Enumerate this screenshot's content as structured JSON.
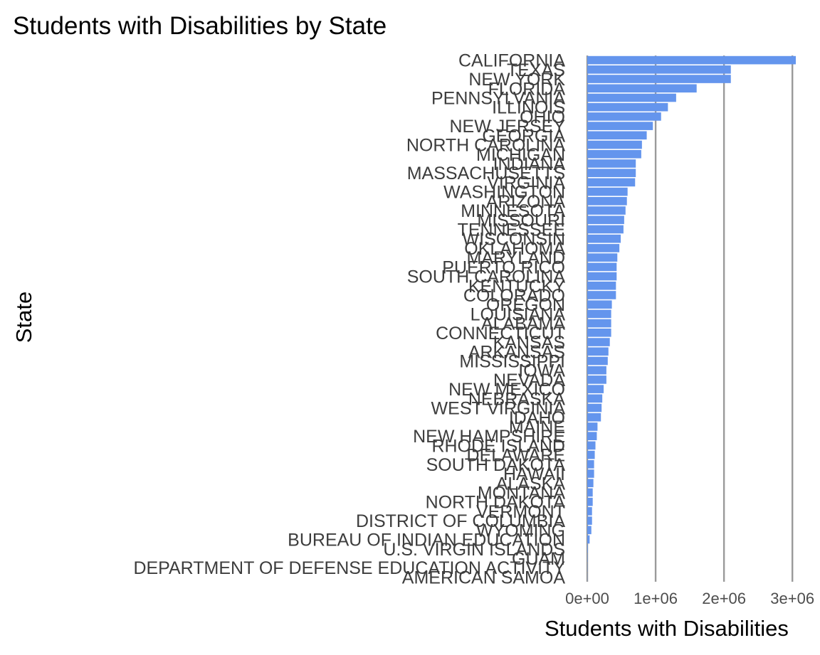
{
  "chart_data": {
    "type": "bar",
    "orientation": "horizontal",
    "title": "Students with Disabilities by State",
    "xlabel": "Students with Disabilities",
    "ylabel": "State",
    "xlim": [
      0,
      3050000
    ],
    "x_ticks": [
      {
        "value": 0,
        "label": "0e+00"
      },
      {
        "value": 1000000,
        "label": "1e+06"
      },
      {
        "value": 2000000,
        "label": "2e+06"
      },
      {
        "value": 3000000,
        "label": "3e+06"
      }
    ],
    "grid": "vertical-major",
    "bar_color": "#6495ED",
    "categories": [
      "CALIFORNIA",
      "TEXAS",
      "NEW YORK",
      "FLORIDA",
      "PENNSYLVANIA",
      "ILLINOIS",
      "OHIO",
      "NEW JERSEY",
      "GEORGIA",
      "NORTH CAROLINA",
      "MICHIGAN",
      "INDIANA",
      "MASSACHUSETTS",
      "VIRGINIA",
      "WASHINGTON",
      "ARIZONA",
      "MINNESOTA",
      "MISSOURI",
      "TENNESSEE",
      "WISCONSIN",
      "OKLAHOMA",
      "MARYLAND",
      "PUERTO RICO",
      "SOUTH CAROLINA",
      "KENTUCKY",
      "COLORADO",
      "OREGON",
      "LOUISIANA",
      "ALABAMA",
      "CONNECTICUT",
      "KANSAS",
      "ARKANSAS",
      "MISSISSIPPI",
      "IOWA",
      "NEVADA",
      "NEW MEXICO",
      "NEBRASKA",
      "WEST VIRGINIA",
      "IDAHO",
      "MAINE",
      "NEW HAMPSHIRE",
      "RHODE ISLAND",
      "DELAWARE",
      "SOUTH DAKOTA",
      "HAWAII",
      "ALASKA",
      "MONTANA",
      "NORTH DAKOTA",
      "VERMONT",
      "DISTRICT OF COLUMBIA",
      "WYOMING",
      "BUREAU OF INDIAN EDUCATION",
      "U.S. VIRGIN ISLANDS",
      "GUAM",
      "DEPARTMENT OF DEFENSE EDUCATION ACTIVITY",
      "AMERICAN SAMOA"
    ],
    "values": [
      3050000,
      2100000,
      2100000,
      1600000,
      1300000,
      1180000,
      1080000,
      960000,
      870000,
      800000,
      790000,
      710000,
      710000,
      700000,
      590000,
      580000,
      560000,
      540000,
      530000,
      490000,
      470000,
      440000,
      430000,
      430000,
      420000,
      420000,
      360000,
      350000,
      350000,
      350000,
      330000,
      310000,
      300000,
      280000,
      280000,
      240000,
      220000,
      210000,
      200000,
      150000,
      140000,
      120000,
      110000,
      100000,
      100000,
      90000,
      80000,
      80000,
      70000,
      70000,
      60000,
      35000,
      8000,
      5000,
      3000,
      2000
    ]
  }
}
